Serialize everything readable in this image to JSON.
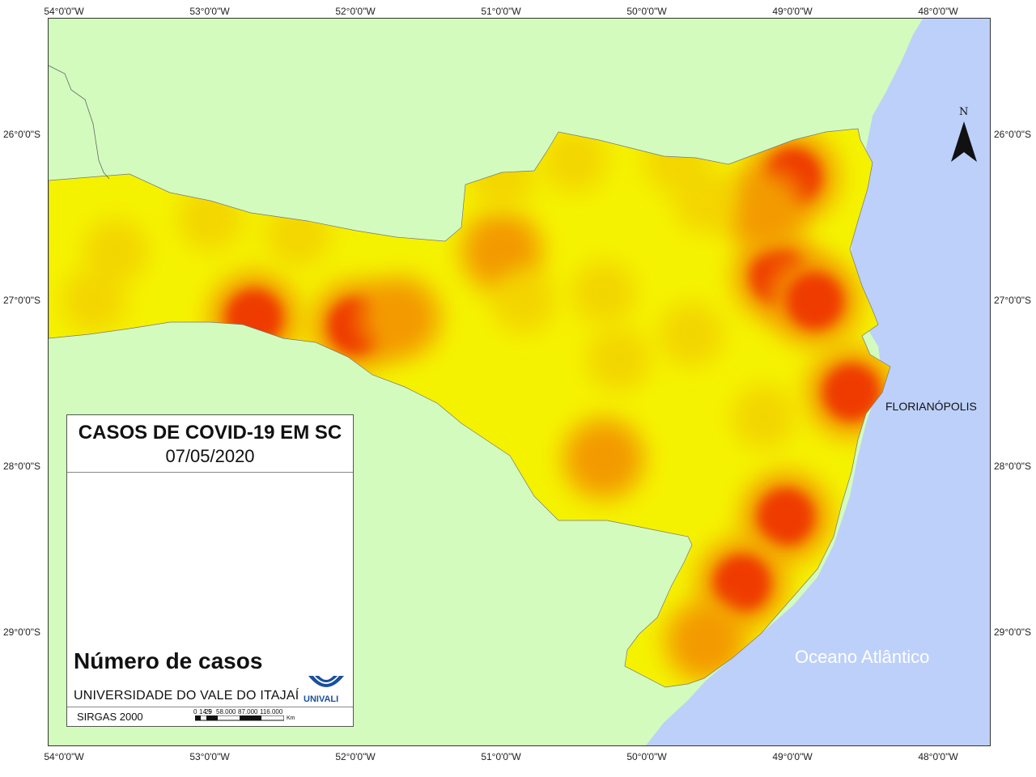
{
  "legend": {
    "title": "CASOS DE COVID-19 EM SC",
    "date": "07/05/2020",
    "cases_label": "Número de casos",
    "university": "UNIVERSIDADE DO VALE DO ITAJAÍ",
    "logo_text": "UNIVALI",
    "datum": "SIRGAS 2000",
    "scale_ticks": [
      "0",
      "14.5",
      "29",
      "58.000",
      "87.000",
      "116.000"
    ],
    "scale_unit": "Km"
  },
  "axis": {
    "top": [
      "54°0'0\"W",
      "53°0'0\"W",
      "52°0'0\"W",
      "51°0'0\"W",
      "50°0'0\"W",
      "49°0'0\"W",
      "48°0'0\"W"
    ],
    "bottom": [
      "54°0'0\"W",
      "53°0'0\"W",
      "52°0'0\"W",
      "51°0'0\"W",
      "50°0'0\"W",
      "49°0'0\"W",
      "48°0'0\"W"
    ],
    "left": [
      "26°0'0\"S",
      "27°0'0\"S",
      "28°0'0\"S",
      "29°0'0\"S"
    ],
    "right": [
      "26°0'0\"S",
      "27°0'0\"S",
      "28°0'0\"S",
      "29°0'0\"S"
    ]
  },
  "labels": {
    "city": "FLORIANÓPOLIS",
    "ocean": "Oceano Atlântico",
    "north": "N"
  },
  "colors": {
    "land_outside": "#d3fbbe",
    "ocean": "#bdd0fa",
    "state_fill": "#f5f200",
    "low": "#f3d100",
    "medium": "#f39a00",
    "high": "#ef3a00"
  },
  "hotspots": [
    {
      "lon": -49.0,
      "lat": -26.25,
      "level": "high"
    },
    {
      "lon": -49.1,
      "lat": -26.85,
      "level": "high"
    },
    {
      "lon": -48.85,
      "lat": -27.0,
      "level": "high"
    },
    {
      "lon": -48.6,
      "lat": -27.55,
      "level": "high"
    },
    {
      "lon": -52.7,
      "lat": -27.1,
      "level": "high"
    },
    {
      "lon": -52.0,
      "lat": -27.15,
      "level": "high"
    },
    {
      "lon": -49.05,
      "lat": -28.3,
      "level": "high"
    },
    {
      "lon": -49.35,
      "lat": -28.7,
      "level": "high"
    },
    {
      "lon": -49.2,
      "lat": -26.45,
      "level": "medium"
    },
    {
      "lon": -50.3,
      "lat": -27.95,
      "level": "medium"
    },
    {
      "lon": -49.6,
      "lat": -29.05,
      "level": "medium"
    },
    {
      "lon": -51.0,
      "lat": -26.7,
      "level": "medium"
    },
    {
      "lon": -51.7,
      "lat": -27.1,
      "level": "medium"
    },
    {
      "lon": -53.65,
      "lat": -26.7,
      "level": "low"
    },
    {
      "lon": -53.0,
      "lat": -26.5,
      "level": "low"
    },
    {
      "lon": -52.4,
      "lat": -26.6,
      "level": "low"
    },
    {
      "lon": -51.0,
      "lat": -26.25,
      "level": "low"
    },
    {
      "lon": -50.5,
      "lat": -26.15,
      "level": "low"
    },
    {
      "lon": -49.8,
      "lat": -26.15,
      "level": "low"
    },
    {
      "lon": -49.6,
      "lat": -26.4,
      "level": "low"
    },
    {
      "lon": -50.85,
      "lat": -27.0,
      "level": "low"
    },
    {
      "lon": -50.3,
      "lat": -26.95,
      "level": "low"
    },
    {
      "lon": -49.7,
      "lat": -27.2,
      "level": "low"
    },
    {
      "lon": -50.2,
      "lat": -27.35,
      "level": "low"
    },
    {
      "lon": -49.2,
      "lat": -27.7,
      "level": "low"
    },
    {
      "lon": -53.8,
      "lat": -27.0,
      "level": "low"
    }
  ]
}
